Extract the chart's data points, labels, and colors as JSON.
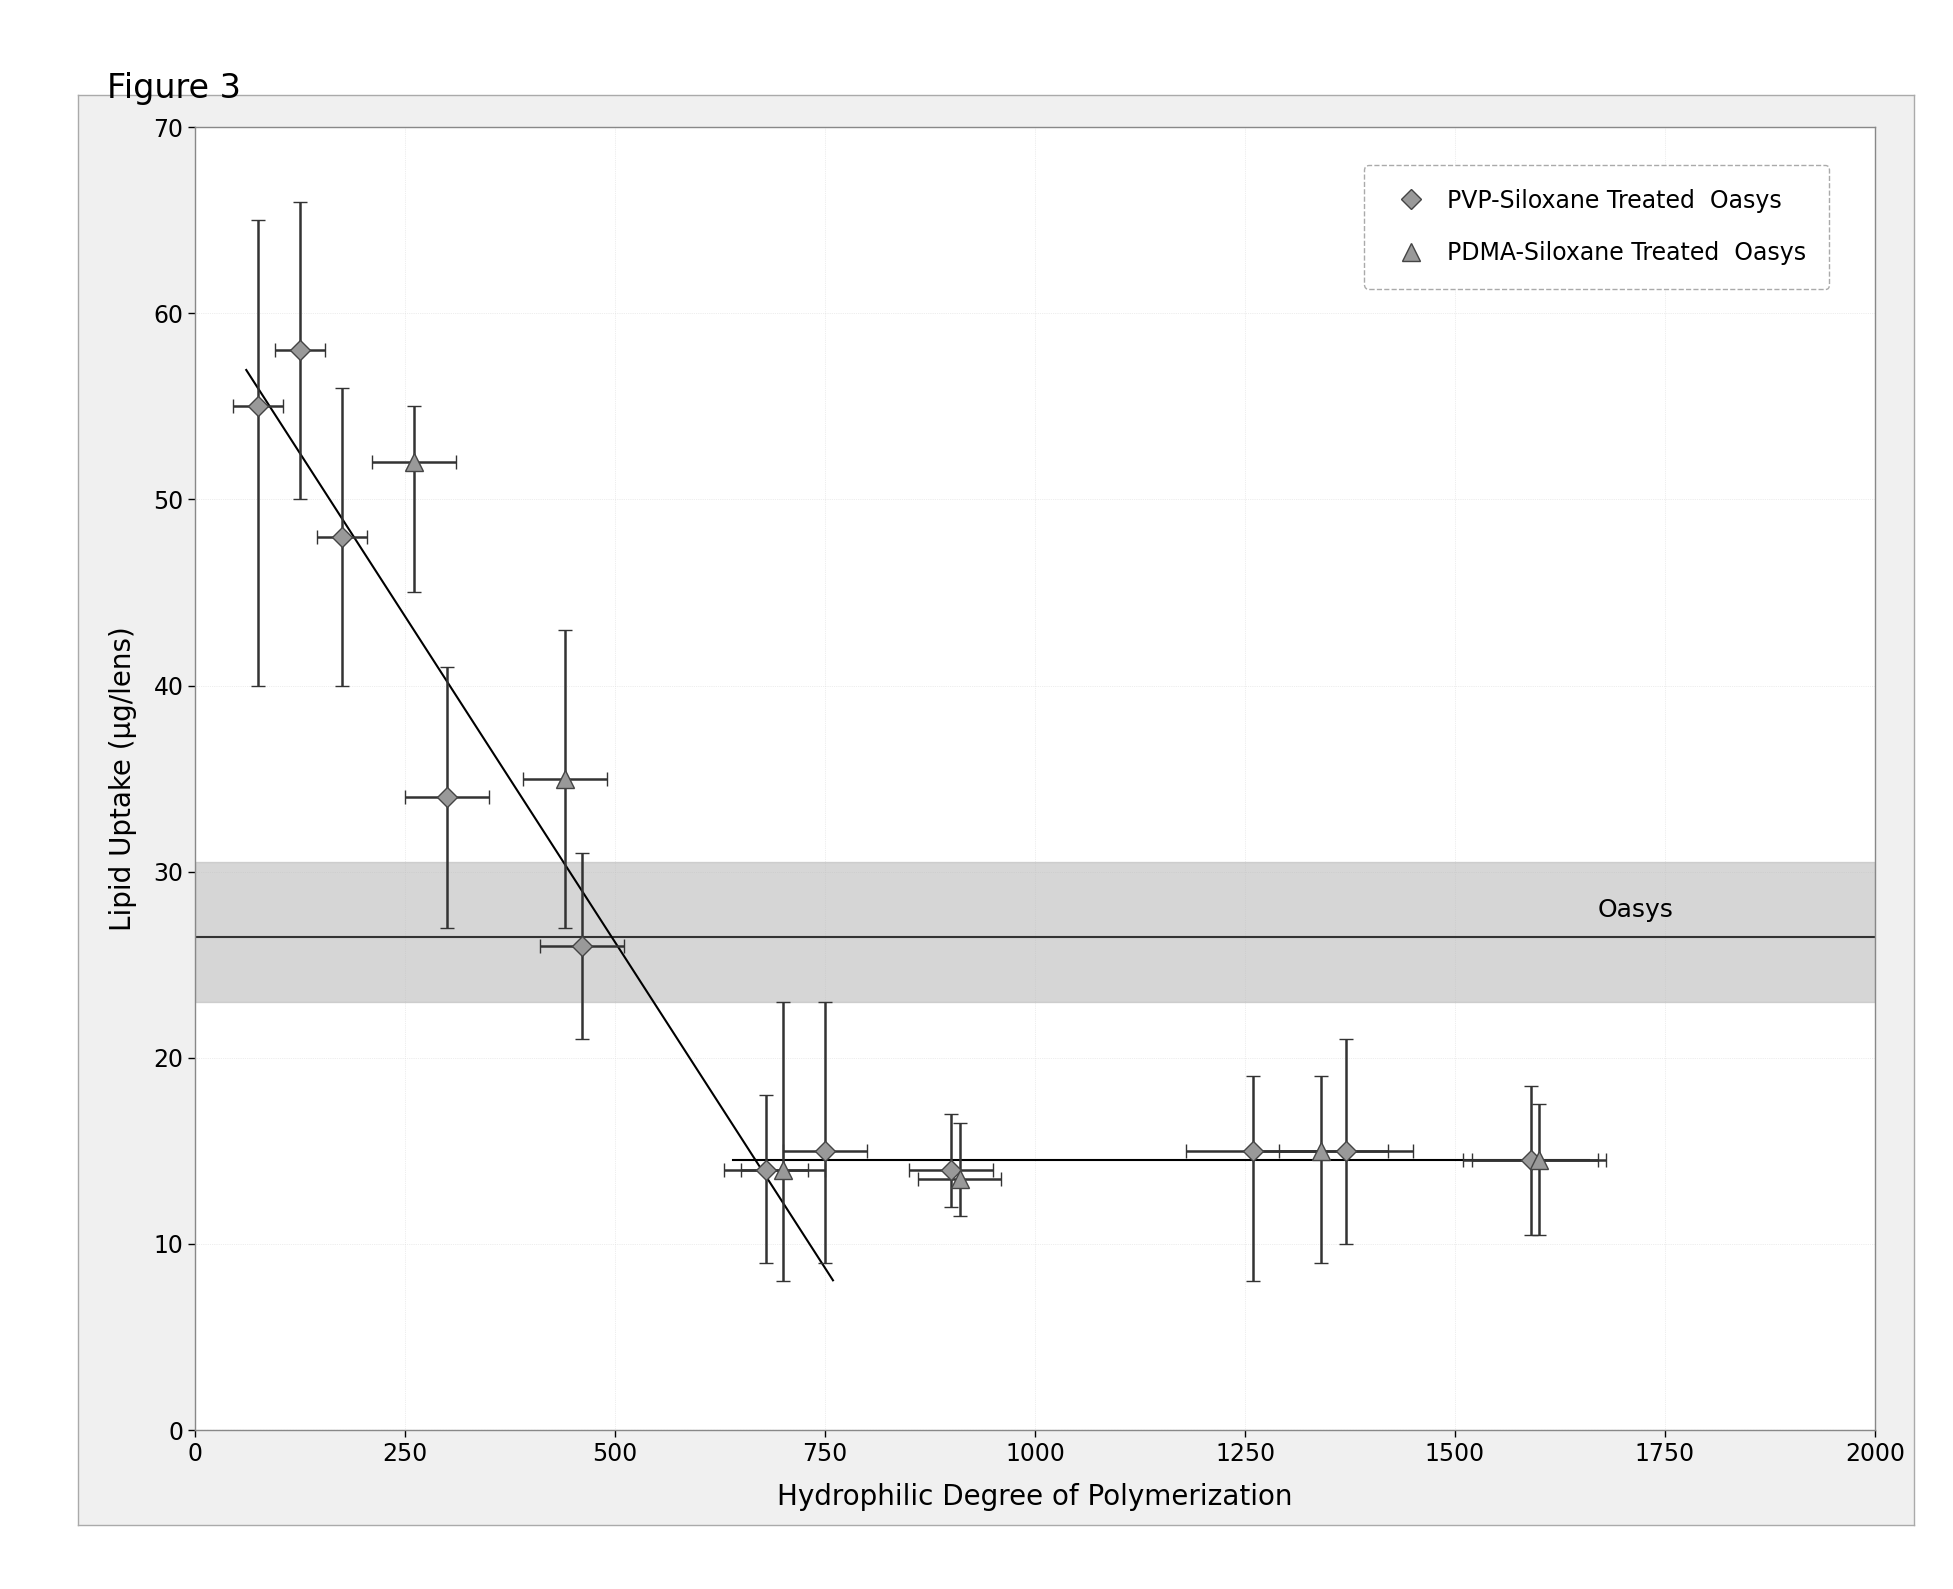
{
  "title": "Figure 3",
  "xlabel": "Hydrophilic Degree of Polymerization",
  "ylabel": "Lipid Uptake (μg/lens)",
  "xlim": [
    0,
    2000
  ],
  "ylim": [
    0,
    70
  ],
  "xticks": [
    0,
    250,
    500,
    750,
    1000,
    1250,
    1500,
    1750,
    2000
  ],
  "yticks": [
    0,
    10,
    20,
    30,
    40,
    50,
    60,
    70
  ],
  "pvp_x": [
    75,
    125,
    175,
    300,
    460,
    680,
    750,
    900,
    1260,
    1370,
    1590
  ],
  "pvp_y": [
    55,
    58,
    48,
    34,
    26,
    14,
    15,
    14,
    15,
    15,
    14.5
  ],
  "pvp_yerr_up": [
    10,
    8,
    8,
    7,
    5,
    4,
    8,
    3,
    4,
    6,
    4
  ],
  "pvp_yerr_dn": [
    15,
    8,
    8,
    7,
    5,
    5,
    6,
    2,
    7,
    5,
    4
  ],
  "pvp_xerr_left": [
    30,
    30,
    30,
    50,
    50,
    50,
    50,
    50,
    80,
    80,
    80
  ],
  "pvp_xerr_right": [
    30,
    30,
    30,
    50,
    50,
    50,
    50,
    50,
    80,
    80,
    80
  ],
  "pdma_x": [
    260,
    440,
    700,
    910,
    1340,
    1600
  ],
  "pdma_y": [
    52,
    35,
    14,
    13.5,
    15,
    14.5
  ],
  "pdma_yerr_up": [
    3,
    8,
    9,
    3,
    4,
    3
  ],
  "pdma_yerr_dn": [
    7,
    8,
    6,
    2,
    6,
    4
  ],
  "pdma_xerr_left": [
    50,
    50,
    50,
    50,
    80,
    80
  ],
  "pdma_xerr_right": [
    50,
    50,
    50,
    50,
    80,
    80
  ],
  "trend_line_x": [
    60,
    760
  ],
  "trend_line_y": [
    57,
    8
  ],
  "flat_line_x": [
    640,
    1660
  ],
  "flat_line_y": [
    14.5,
    14.5
  ],
  "oasys_mean": 26.5,
  "oasys_band_low": 23.0,
  "oasys_band_high": 30.5,
  "oasys_label": "Oasys",
  "marker_color": "#999999",
  "line_color": "#000000",
  "band_color": "#bbbbbb",
  "oasys_line_color": "#333333",
  "legend_pvp": "PVP-Siloxane Treated  Oasys",
  "legend_pdma": "PDMA-Siloxane Treated  Oasys",
  "background_color": "#ffffff",
  "figure_background": "#ffffff",
  "outer_box_color": "#aaaaaa",
  "figure_box_facecolor": "#f0f0f0"
}
